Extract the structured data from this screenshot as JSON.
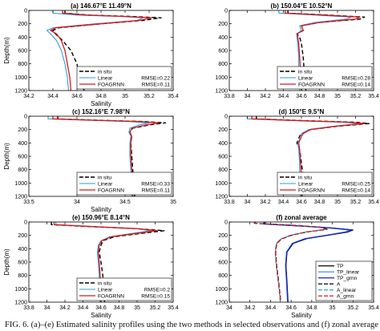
{
  "figure": {
    "caption": "FIG. 6. (a)–(e) Estimated salinity profiles using the two methods in selected observations and (f) zonal average"
  },
  "colors": {
    "in_situ": "#000000",
    "linear": "#2f9ede",
    "foagrnn": "#d7191c",
    "tp": "#000000",
    "tp_linear": "#2f9ede",
    "tp_grnn": "#1a1ad9",
    "a": "#000000",
    "a_linear": "#2f9ede",
    "a_grnn": "#d7191c"
  },
  "chart_data": [
    {
      "type": "line",
      "panel": "a",
      "title": "(a) 146.67°E 11.49°N",
      "xlabel": "Salinity",
      "ylabel": "Depth(m)",
      "xlim": [
        34.2,
        35.4
      ],
      "ylim": [
        1200,
        0
      ],
      "xticks": [
        "34.2",
        "34.4",
        "34.6",
        "34.8",
        "35",
        "35.2",
        "35.4"
      ],
      "yticks": [
        "0",
        "200",
        "400",
        "600",
        "800",
        "1000",
        "1200"
      ],
      "legend_position": "bottom-right",
      "legend": [
        "in situ",
        "Linear",
        "FOAGRNN"
      ],
      "rmse_labels": [
        "RMSE=0.22",
        "RMSE=0.11"
      ],
      "series": [
        {
          "name": "in situ",
          "style": "dashed",
          "x": [
            34.5,
            34.5,
            34.7,
            35.05,
            35.3,
            35.15,
            34.8,
            34.45,
            34.4,
            34.42,
            34.48,
            34.55,
            34.6,
            34.62,
            34.66
          ],
          "y": [
            0,
            40,
            70,
            90,
            110,
            150,
            200,
            260,
            300,
            350,
            450,
            600,
            800,
            1000,
            1200
          ]
        },
        {
          "name": "Linear",
          "style": "solid",
          "x": [
            34.4,
            34.4,
            34.6,
            34.95,
            35.15,
            35.1,
            34.75,
            34.4,
            34.35,
            34.38,
            34.43,
            34.47,
            34.5,
            34.52,
            34.53
          ],
          "y": [
            0,
            40,
            70,
            90,
            110,
            150,
            200,
            260,
            300,
            350,
            450,
            600,
            800,
            1000,
            1200
          ]
        },
        {
          "name": "FOAGRNN",
          "style": "solid",
          "x": [
            34.48,
            34.48,
            34.68,
            35.0,
            35.22,
            35.12,
            34.8,
            34.42,
            34.38,
            34.43,
            34.47,
            34.5,
            34.52,
            34.54,
            34.55
          ],
          "y": [
            0,
            40,
            70,
            90,
            110,
            150,
            200,
            260,
            300,
            350,
            450,
            600,
            800,
            1000,
            1200
          ]
        }
      ]
    },
    {
      "type": "line",
      "panel": "b",
      "title": "(b) 150.04°E 10.52°N",
      "xlabel": "",
      "ylabel": "",
      "xlim": [
        33.8,
        35.4
      ],
      "ylim": [
        1200,
        0
      ],
      "xticks": [
        "33.8",
        "34",
        "34.2",
        "34.4",
        "34.6",
        "34.8",
        "35",
        "35.2",
        "35.4"
      ],
      "yticks": [
        "0",
        "200",
        "400",
        "600",
        "800",
        "1000",
        "1200"
      ],
      "legend_position": "bottom-right",
      "legend": [
        "in situ",
        "Linear",
        "FOAGRNN"
      ],
      "rmse_labels": [
        "RMSE=0.28",
        "RMSE=0.14"
      ],
      "series": [
        {
          "name": "in situ",
          "style": "dashed",
          "x": [
            34.45,
            34.45,
            34.9,
            35.3,
            35.25,
            34.8,
            34.6,
            34.62,
            34.55,
            34.58,
            34.6,
            34.62,
            34.63,
            34.64,
            34.65
          ],
          "y": [
            0,
            40,
            70,
            100,
            130,
            180,
            230,
            300,
            350,
            400,
            500,
            700,
            900,
            1100,
            1200
          ]
        },
        {
          "name": "Linear",
          "style": "solid",
          "x": [
            34.35,
            34.35,
            34.75,
            35.15,
            35.1,
            34.75,
            34.58,
            34.6,
            34.55,
            34.55,
            34.56,
            34.57,
            34.57,
            34.58,
            34.58
          ],
          "y": [
            0,
            40,
            70,
            100,
            130,
            180,
            230,
            300,
            350,
            400,
            500,
            700,
            900,
            1100,
            1200
          ]
        },
        {
          "name": "FOAGRNN",
          "style": "solid",
          "x": [
            34.42,
            34.42,
            34.85,
            35.25,
            35.2,
            34.8,
            34.6,
            34.62,
            34.55,
            34.56,
            34.57,
            34.58,
            34.59,
            34.6,
            34.6
          ],
          "y": [
            0,
            40,
            70,
            100,
            130,
            180,
            230,
            300,
            350,
            400,
            500,
            700,
            900,
            1100,
            1200
          ]
        }
      ]
    },
    {
      "type": "line",
      "panel": "c",
      "title": "(c) 152.16°E 7.98°N",
      "xlabel": "Salinity",
      "ylabel": "Depth(m)",
      "xlim": [
        33.5,
        35.0
      ],
      "ylim": [
        1200,
        0
      ],
      "xticks": [
        "33.5",
        "34",
        "34.5",
        "35"
      ],
      "yticks": [
        "0",
        "200",
        "400",
        "600",
        "800",
        "1000",
        "1200"
      ],
      "legend_position": "bottom-right",
      "legend": [
        "in situ",
        "Linear",
        "FOAGRNN"
      ],
      "rmse_labels": [
        "RMSE=0.33",
        "RMSE=0.11"
      ],
      "series": [
        {
          "name": "in situ",
          "style": "dashed",
          "x": [
            33.8,
            33.8,
            34.2,
            34.7,
            34.92,
            34.75,
            34.58,
            34.55,
            34.57,
            34.56,
            34.57,
            34.58,
            34.59,
            34.6
          ],
          "y": [
            0,
            40,
            60,
            80,
            100,
            130,
            180,
            240,
            300,
            400,
            600,
            800,
            1000,
            1200
          ]
        },
        {
          "name": "Linear",
          "style": "solid",
          "x": [
            33.7,
            33.7,
            34.1,
            34.55,
            34.75,
            34.65,
            34.55,
            34.54,
            34.56,
            34.55,
            34.55,
            34.56,
            34.56,
            34.57
          ],
          "y": [
            0,
            40,
            60,
            80,
            100,
            130,
            180,
            240,
            300,
            400,
            600,
            800,
            1000,
            1200
          ]
        },
        {
          "name": "FOAGRNN",
          "style": "solid",
          "x": [
            33.75,
            33.75,
            34.18,
            34.65,
            34.85,
            34.72,
            34.57,
            34.55,
            34.57,
            34.56,
            34.56,
            34.57,
            34.58,
            34.58
          ],
          "y": [
            0,
            40,
            60,
            80,
            100,
            130,
            180,
            240,
            300,
            400,
            600,
            800,
            1000,
            1200
          ]
        }
      ]
    },
    {
      "type": "line",
      "panel": "d",
      "title": "(d) 150°E 9.5°N",
      "xlabel": "",
      "ylabel": "",
      "xlim": [
        33.8,
        35.4
      ],
      "ylim": [
        1200,
        0
      ],
      "xticks": [
        "33.8",
        "34",
        "34.2",
        "34.4",
        "34.6",
        "34.8",
        "35",
        "35.2",
        "35.4"
      ],
      "yticks": [
        "0",
        "200",
        "400",
        "600",
        "800",
        "1000",
        "1200"
      ],
      "legend_position": "bottom-right",
      "legend": [
        "in situ",
        "Linear",
        "FOAGRNN"
      ],
      "rmse_labels": [
        "RMSE=0.25",
        "RMSE=0.14"
      ],
      "series": [
        {
          "name": "in situ",
          "style": "dashed",
          "x": [
            34.1,
            34.1,
            34.7,
            35.2,
            35.35,
            35.0,
            34.7,
            34.6,
            34.58,
            34.55,
            34.58,
            34.6,
            34.62,
            34.63,
            34.64
          ],
          "y": [
            0,
            40,
            70,
            90,
            110,
            150,
            200,
            260,
            300,
            400,
            500,
            700,
            900,
            1100,
            1200
          ]
        },
        {
          "name": "Linear",
          "style": "solid",
          "x": [
            34.0,
            34.0,
            34.6,
            35.05,
            35.25,
            34.95,
            34.68,
            34.6,
            34.6,
            34.56,
            34.57,
            34.58,
            34.58,
            34.59,
            34.59
          ],
          "y": [
            0,
            40,
            70,
            90,
            110,
            150,
            200,
            260,
            300,
            400,
            500,
            700,
            900,
            1100,
            1200
          ]
        },
        {
          "name": "FOAGRNN",
          "style": "solid",
          "x": [
            34.05,
            34.05,
            34.65,
            35.12,
            35.3,
            34.98,
            34.7,
            34.62,
            34.6,
            34.57,
            34.58,
            34.59,
            34.6,
            34.6,
            34.61
          ],
          "y": [
            0,
            40,
            70,
            90,
            110,
            150,
            200,
            260,
            300,
            400,
            500,
            700,
            900,
            1100,
            1200
          ]
        }
      ]
    },
    {
      "type": "line",
      "panel": "e",
      "title": "(e) 150.96°E 8.14°N",
      "xlabel": "Salinity",
      "ylabel": "Depth(m)",
      "xlim": [
        33.8,
        35.4
      ],
      "ylim": [
        1200,
        0
      ],
      "xticks": [
        "33.8",
        "34",
        "34.2",
        "34.4",
        "34.6",
        "34.8",
        "35",
        "35.2",
        "35.4"
      ],
      "yticks": [
        "0",
        "200",
        "400",
        "600",
        "800",
        "1000",
        "1200"
      ],
      "legend_position": "bottom-right",
      "legend": [
        "in situ",
        "Linear",
        "FOAGRNN"
      ],
      "rmse_labels": [
        "RMSE=0.2",
        "RMSE=0.15"
      ],
      "series": [
        {
          "name": "in situ",
          "style": "dashed",
          "x": [
            34.05,
            34.05,
            34.5,
            35.0,
            35.3,
            35.05,
            34.75,
            34.62,
            34.6,
            34.58,
            34.6,
            34.62,
            34.63,
            34.64
          ],
          "y": [
            0,
            40,
            70,
            100,
            130,
            170,
            220,
            280,
            350,
            450,
            600,
            800,
            1000,
            1200
          ]
        },
        {
          "name": "Linear",
          "style": "solid",
          "x": [
            34.1,
            34.1,
            34.55,
            35.0,
            35.15,
            34.95,
            34.7,
            34.6,
            34.57,
            34.56,
            34.57,
            34.58,
            34.58,
            34.59
          ],
          "y": [
            0,
            40,
            70,
            100,
            130,
            170,
            220,
            280,
            350,
            450,
            600,
            800,
            1000,
            1200
          ]
        },
        {
          "name": "FOAGRNN",
          "style": "solid",
          "x": [
            34.08,
            34.08,
            34.52,
            35.0,
            35.22,
            35.0,
            34.72,
            34.61,
            34.58,
            34.57,
            34.58,
            34.59,
            34.6,
            34.6
          ],
          "y": [
            0,
            40,
            70,
            100,
            130,
            170,
            220,
            280,
            350,
            450,
            600,
            800,
            1000,
            1200
          ]
        }
      ]
    },
    {
      "type": "line",
      "panel": "f",
      "title": "(f) zonal average",
      "xlabel": "Salinity",
      "ylabel": "",
      "xlim": [
        34.0,
        35.4
      ],
      "ylim": [
        1200,
        0
      ],
      "xticks": [
        "34",
        "34.2",
        "34.4",
        "34.6",
        "34.8",
        "35",
        "35.2",
        "35.4"
      ],
      "yticks": [
        "0",
        "200",
        "400",
        "600",
        "800",
        "1000",
        "1200"
      ],
      "legend_position": "bottom-right",
      "legend": [
        "TP",
        "TP_linear",
        "TP_grnn",
        "A",
        "A_linear",
        "A_grnn"
      ],
      "series": [
        {
          "name": "TP",
          "style": "solid",
          "x": [
            34.35,
            34.35,
            34.7,
            35.0,
            35.2,
            35.15,
            34.95,
            34.75,
            34.62,
            34.56,
            34.55,
            34.56,
            34.57
          ],
          "y": [
            0,
            30,
            60,
            90,
            120,
            150,
            200,
            250,
            320,
            450,
            650,
            900,
            1200
          ]
        },
        {
          "name": "TP_linear",
          "style": "solid",
          "x": [
            34.33,
            34.33,
            34.68,
            34.98,
            35.17,
            35.12,
            34.93,
            34.73,
            34.61,
            34.555,
            34.545,
            34.555,
            34.565
          ],
          "y": [
            0,
            30,
            60,
            90,
            120,
            150,
            200,
            250,
            320,
            450,
            650,
            900,
            1200
          ]
        },
        {
          "name": "TP_grnn",
          "style": "solid",
          "x": [
            34.34,
            34.34,
            34.69,
            34.99,
            35.19,
            35.14,
            34.94,
            34.74,
            34.615,
            34.558,
            34.548,
            34.558,
            34.568
          ],
          "y": [
            0,
            30,
            60,
            90,
            120,
            150,
            200,
            250,
            320,
            450,
            650,
            900,
            1200
          ]
        },
        {
          "name": "A",
          "style": "dashed",
          "x": [
            34.25,
            34.25,
            34.65,
            34.9,
            34.95,
            34.75,
            34.6,
            34.5,
            34.46,
            34.45,
            34.46,
            34.48,
            34.5
          ],
          "y": [
            0,
            20,
            50,
            80,
            110,
            150,
            200,
            260,
            330,
            450,
            650,
            900,
            1200
          ]
        },
        {
          "name": "A_linear",
          "style": "dashed",
          "x": [
            34.24,
            34.24,
            34.64,
            34.89,
            34.93,
            34.74,
            34.59,
            34.49,
            34.455,
            34.445,
            34.455,
            34.475,
            34.495
          ],
          "y": [
            0,
            20,
            50,
            80,
            110,
            150,
            200,
            260,
            330,
            450,
            650,
            900,
            1200
          ]
        },
        {
          "name": "A_grnn",
          "style": "dashed",
          "x": [
            34.245,
            34.245,
            34.645,
            34.895,
            34.94,
            34.745,
            34.595,
            34.495,
            34.458,
            34.448,
            34.458,
            34.478,
            34.498
          ],
          "y": [
            0,
            20,
            50,
            80,
            110,
            150,
            200,
            260,
            330,
            450,
            650,
            900,
            1200
          ]
        }
      ]
    }
  ]
}
